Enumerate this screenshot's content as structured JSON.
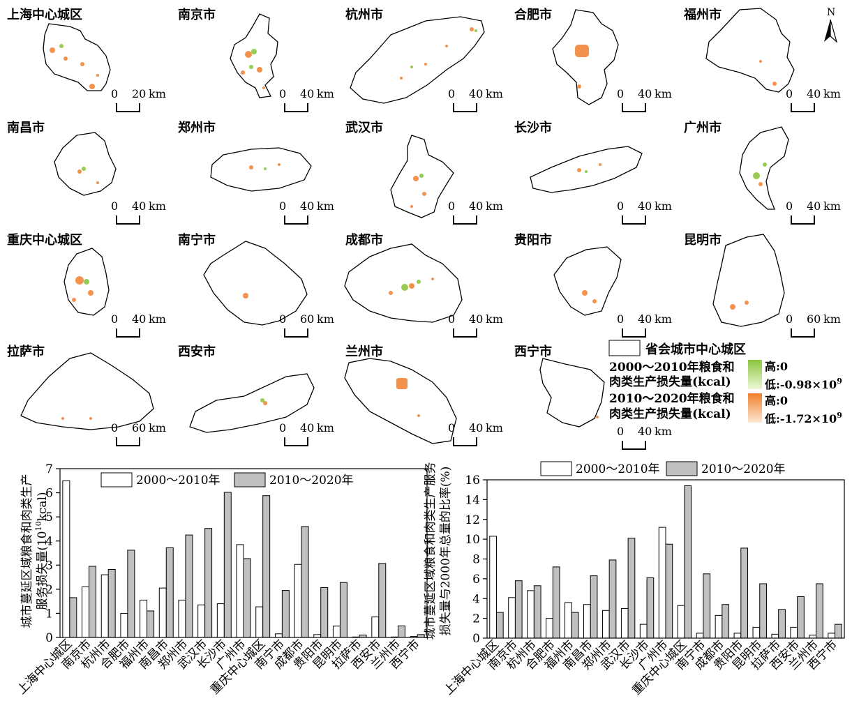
{
  "maps": {
    "cities": [
      {
        "name": "上海中心城区",
        "scale": "20"
      },
      {
        "name": "南京市",
        "scale": "40"
      },
      {
        "name": "杭州市",
        "scale": "40"
      },
      {
        "name": "合肥市",
        "scale": "40"
      },
      {
        "name": "福州市",
        "scale": "40"
      },
      {
        "name": "南昌市",
        "scale": "40"
      },
      {
        "name": "郑州市",
        "scale": "40"
      },
      {
        "name": "武汉市",
        "scale": "40"
      },
      {
        "name": "长沙市",
        "scale": "40"
      },
      {
        "name": "广州市",
        "scale": "40"
      },
      {
        "name": "重庆中心城区",
        "scale": "40"
      },
      {
        "name": "南宁市",
        "scale": "60"
      },
      {
        "name": "成都市",
        "scale": "40"
      },
      {
        "name": "贵阳市",
        "scale": "40"
      },
      {
        "name": "昆明市",
        "scale": "60"
      },
      {
        "name": "拉萨市",
        "scale": "60"
      },
      {
        "name": "西安市",
        "scale": "40"
      },
      {
        "name": "兰州市",
        "scale": "40"
      },
      {
        "name": "西宁市",
        "scale": "40"
      }
    ],
    "scale_zero": "0",
    "scale_unit": "km",
    "north_label": "N"
  },
  "legend": {
    "boundary_label": "省会城市中心城区",
    "period1_label_line1": "2000～2010年粮食和",
    "period1_label_line2": "肉类生产损失量(kcal)",
    "period1_high": "高:0",
    "period1_low": "低:-0.98×10",
    "period1_low_exp": "9",
    "period2_label_line1": "2010～2020年粮食和",
    "period2_label_line2": "肉类生产损失量(kcal)",
    "period2_high": "高:0",
    "period2_low": "低:-1.72×10",
    "period2_low_exp": "9",
    "colors": {
      "green_high": "#e8f5c8",
      "green_low": "#8cc63f",
      "orange_high": "#fde3c7",
      "orange_low": "#f07f2e"
    }
  },
  "chart_data": [
    {
      "type": "bar",
      "ylabel_line1": "城市蔓延区域粮食和肉类生产",
      "ylabel_line2a": "服务损失量(10",
      "ylabel_exp": "10",
      "ylabel_line2b": "kcal)",
      "ylim": [
        0,
        7
      ],
      "yticks": [
        "0",
        "1",
        "2",
        "3",
        "4",
        "5",
        "6",
        "7"
      ],
      "legend_position": "top",
      "categories": [
        "上海中心城区",
        "南京市",
        "杭州市",
        "合肥市",
        "福州市",
        "南昌市",
        "郑州市",
        "武汉市",
        "长沙市",
        "广州市",
        "重庆中心城区",
        "南宁市",
        "成都市",
        "贵阳市",
        "昆明市",
        "拉萨市",
        "西安市",
        "兰州市",
        "西宁市"
      ],
      "series": [
        {
          "name": "2000～2010年",
          "color": "#ffffff",
          "values": [
            6.5,
            2.1,
            2.6,
            1.0,
            1.55,
            2.05,
            1.55,
            1.35,
            1.4,
            3.85,
            1.27,
            0.15,
            3.03,
            0.12,
            0.47,
            0.02,
            0.85,
            0.02,
            0.04
          ]
        },
        {
          "name": "2010～2020年",
          "color": "#c0c0c0",
          "values": [
            1.65,
            2.95,
            2.82,
            3.62,
            1.1,
            3.72,
            4.25,
            4.52,
            6.02,
            3.27,
            5.88,
            1.95,
            4.6,
            2.07,
            2.28,
            0.1,
            3.07,
            0.48,
            0.12
          ]
        }
      ]
    },
    {
      "type": "bar",
      "ylabel_line1": "城市蔓延区域粮食和肉类生产服务",
      "ylabel_line2": "损失量与2000年总量的比率(%)",
      "ylim": [
        0,
        16
      ],
      "yticks": [
        "0",
        "2",
        "4",
        "6",
        "8",
        "10",
        "12",
        "14",
        "16"
      ],
      "legend_position": "top",
      "categories": [
        "上海中心城区",
        "南京市",
        "杭州市",
        "合肥市",
        "福州市",
        "南昌市",
        "郑州市",
        "武汉市",
        "长沙市",
        "广州市",
        "重庆中心城区",
        "南宁市",
        "成都市",
        "贵阳市",
        "昆明市",
        "拉萨市",
        "西安市",
        "兰州市",
        "西宁市"
      ],
      "series": [
        {
          "name": "2000～2010年",
          "color": "#ffffff",
          "values": [
            10.3,
            4.1,
            4.8,
            2.0,
            3.6,
            3.4,
            2.8,
            3.0,
            1.4,
            11.2,
            3.3,
            0.5,
            2.3,
            0.5,
            1.1,
            0.4,
            1.1,
            0.3,
            0.5
          ]
        },
        {
          "name": "2010～2020年",
          "color": "#c0c0c0",
          "values": [
            2.6,
            5.8,
            5.3,
            7.2,
            2.6,
            6.3,
            7.9,
            10.1,
            6.1,
            9.5,
            15.4,
            6.5,
            3.4,
            9.1,
            5.5,
            2.9,
            4.2,
            5.5,
            1.4
          ]
        }
      ]
    }
  ]
}
